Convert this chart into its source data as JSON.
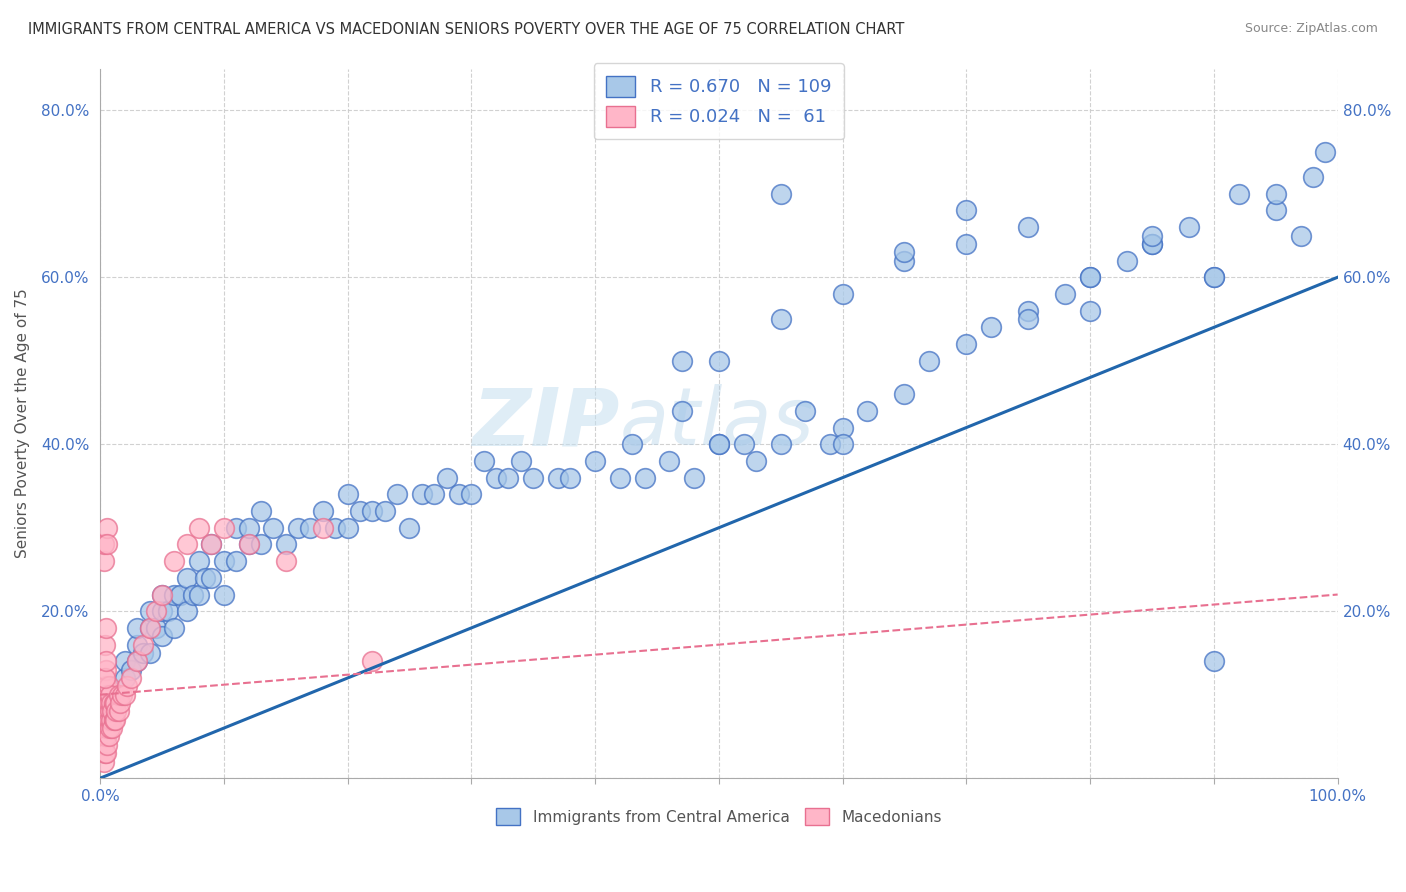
{
  "title": "IMMIGRANTS FROM CENTRAL AMERICA VS MACEDONIAN SENIORS POVERTY OVER THE AGE OF 75 CORRELATION CHART",
  "source": "Source: ZipAtlas.com",
  "ylabel": "Seniors Poverty Over the Age of 75",
  "watermark": "ZIPatlas",
  "series1_color": "#a8c8e8",
  "series1_edge": "#4472c4",
  "series2_color": "#ffb6c8",
  "series2_edge": "#e87090",
  "line1_color": "#2166ac",
  "line2_color": "#e87090",
  "xlim": [
    0.0,
    1.0
  ],
  "ylim": [
    0.0,
    0.85
  ],
  "bg_color": "#ffffff",
  "grid_color": "#cccccc",
  "title_color": "#333333",
  "axis_color": "#4472c4",
  "label_color": "#555555",
  "blue_x": [
    0.005,
    0.01,
    0.015,
    0.02,
    0.02,
    0.025,
    0.03,
    0.03,
    0.03,
    0.035,
    0.04,
    0.04,
    0.04,
    0.045,
    0.05,
    0.05,
    0.05,
    0.055,
    0.06,
    0.06,
    0.065,
    0.07,
    0.07,
    0.075,
    0.08,
    0.08,
    0.085,
    0.09,
    0.09,
    0.1,
    0.1,
    0.11,
    0.11,
    0.12,
    0.12,
    0.13,
    0.13,
    0.14,
    0.15,
    0.16,
    0.17,
    0.18,
    0.19,
    0.2,
    0.2,
    0.21,
    0.22,
    0.23,
    0.24,
    0.25,
    0.26,
    0.27,
    0.28,
    0.29,
    0.3,
    0.31,
    0.32,
    0.33,
    0.34,
    0.35,
    0.37,
    0.38,
    0.4,
    0.42,
    0.43,
    0.44,
    0.46,
    0.47,
    0.48,
    0.5,
    0.52,
    0.53,
    0.55,
    0.57,
    0.59,
    0.6,
    0.62,
    0.65,
    0.67,
    0.7,
    0.72,
    0.75,
    0.78,
    0.8,
    0.83,
    0.85,
    0.88,
    0.9,
    0.47,
    0.5,
    0.55,
    0.6,
    0.65,
    0.7,
    0.75,
    0.8,
    0.85,
    0.9,
    0.92,
    0.95,
    0.97,
    0.98,
    0.99,
    0.5,
    0.55,
    0.6,
    0.65,
    0.7,
    0.75,
    0.8,
    0.85,
    0.9,
    0.95
  ],
  "blue_y": [
    0.05,
    0.08,
    0.1,
    0.12,
    0.14,
    0.13,
    0.14,
    0.16,
    0.18,
    0.15,
    0.15,
    0.18,
    0.2,
    0.18,
    0.17,
    0.2,
    0.22,
    0.2,
    0.18,
    0.22,
    0.22,
    0.2,
    0.24,
    0.22,
    0.22,
    0.26,
    0.24,
    0.24,
    0.28,
    0.22,
    0.26,
    0.26,
    0.3,
    0.28,
    0.3,
    0.28,
    0.32,
    0.3,
    0.28,
    0.3,
    0.3,
    0.32,
    0.3,
    0.3,
    0.34,
    0.32,
    0.32,
    0.32,
    0.34,
    0.3,
    0.34,
    0.34,
    0.36,
    0.34,
    0.34,
    0.38,
    0.36,
    0.36,
    0.38,
    0.36,
    0.36,
    0.36,
    0.38,
    0.36,
    0.4,
    0.36,
    0.38,
    0.5,
    0.36,
    0.4,
    0.4,
    0.38,
    0.4,
    0.44,
    0.4,
    0.42,
    0.44,
    0.46,
    0.5,
    0.52,
    0.54,
    0.56,
    0.58,
    0.6,
    0.62,
    0.64,
    0.66,
    0.6,
    0.44,
    0.4,
    0.55,
    0.58,
    0.62,
    0.64,
    0.66,
    0.56,
    0.64,
    0.6,
    0.7,
    0.68,
    0.65,
    0.72,
    0.75,
    0.5,
    0.7,
    0.4,
    0.63,
    0.68,
    0.55,
    0.6,
    0.65,
    0.14,
    0.7
  ],
  "pink_x": [
    0.003,
    0.003,
    0.004,
    0.004,
    0.004,
    0.004,
    0.005,
    0.005,
    0.005,
    0.005,
    0.005,
    0.005,
    0.006,
    0.006,
    0.006,
    0.006,
    0.007,
    0.007,
    0.007,
    0.007,
    0.008,
    0.008,
    0.008,
    0.009,
    0.009,
    0.01,
    0.01,
    0.011,
    0.011,
    0.012,
    0.012,
    0.013,
    0.015,
    0.015,
    0.016,
    0.018,
    0.02,
    0.022,
    0.025,
    0.03,
    0.035,
    0.04,
    0.045,
    0.05,
    0.06,
    0.07,
    0.08,
    0.09,
    0.1,
    0.12,
    0.15,
    0.18,
    0.22,
    0.003,
    0.003,
    0.004,
    0.004,
    0.005,
    0.005,
    0.006,
    0.006
  ],
  "pink_y": [
    0.02,
    0.04,
    0.03,
    0.05,
    0.07,
    0.09,
    0.03,
    0.05,
    0.07,
    0.09,
    0.11,
    0.13,
    0.04,
    0.06,
    0.08,
    0.1,
    0.05,
    0.07,
    0.09,
    0.11,
    0.06,
    0.08,
    0.1,
    0.07,
    0.09,
    0.06,
    0.08,
    0.07,
    0.09,
    0.07,
    0.09,
    0.08,
    0.08,
    0.1,
    0.09,
    0.1,
    0.1,
    0.11,
    0.12,
    0.14,
    0.16,
    0.18,
    0.2,
    0.22,
    0.26,
    0.28,
    0.3,
    0.28,
    0.3,
    0.28,
    0.26,
    0.3,
    0.14,
    0.26,
    0.28,
    0.12,
    0.16,
    0.14,
    0.18,
    0.3,
    0.28
  ]
}
